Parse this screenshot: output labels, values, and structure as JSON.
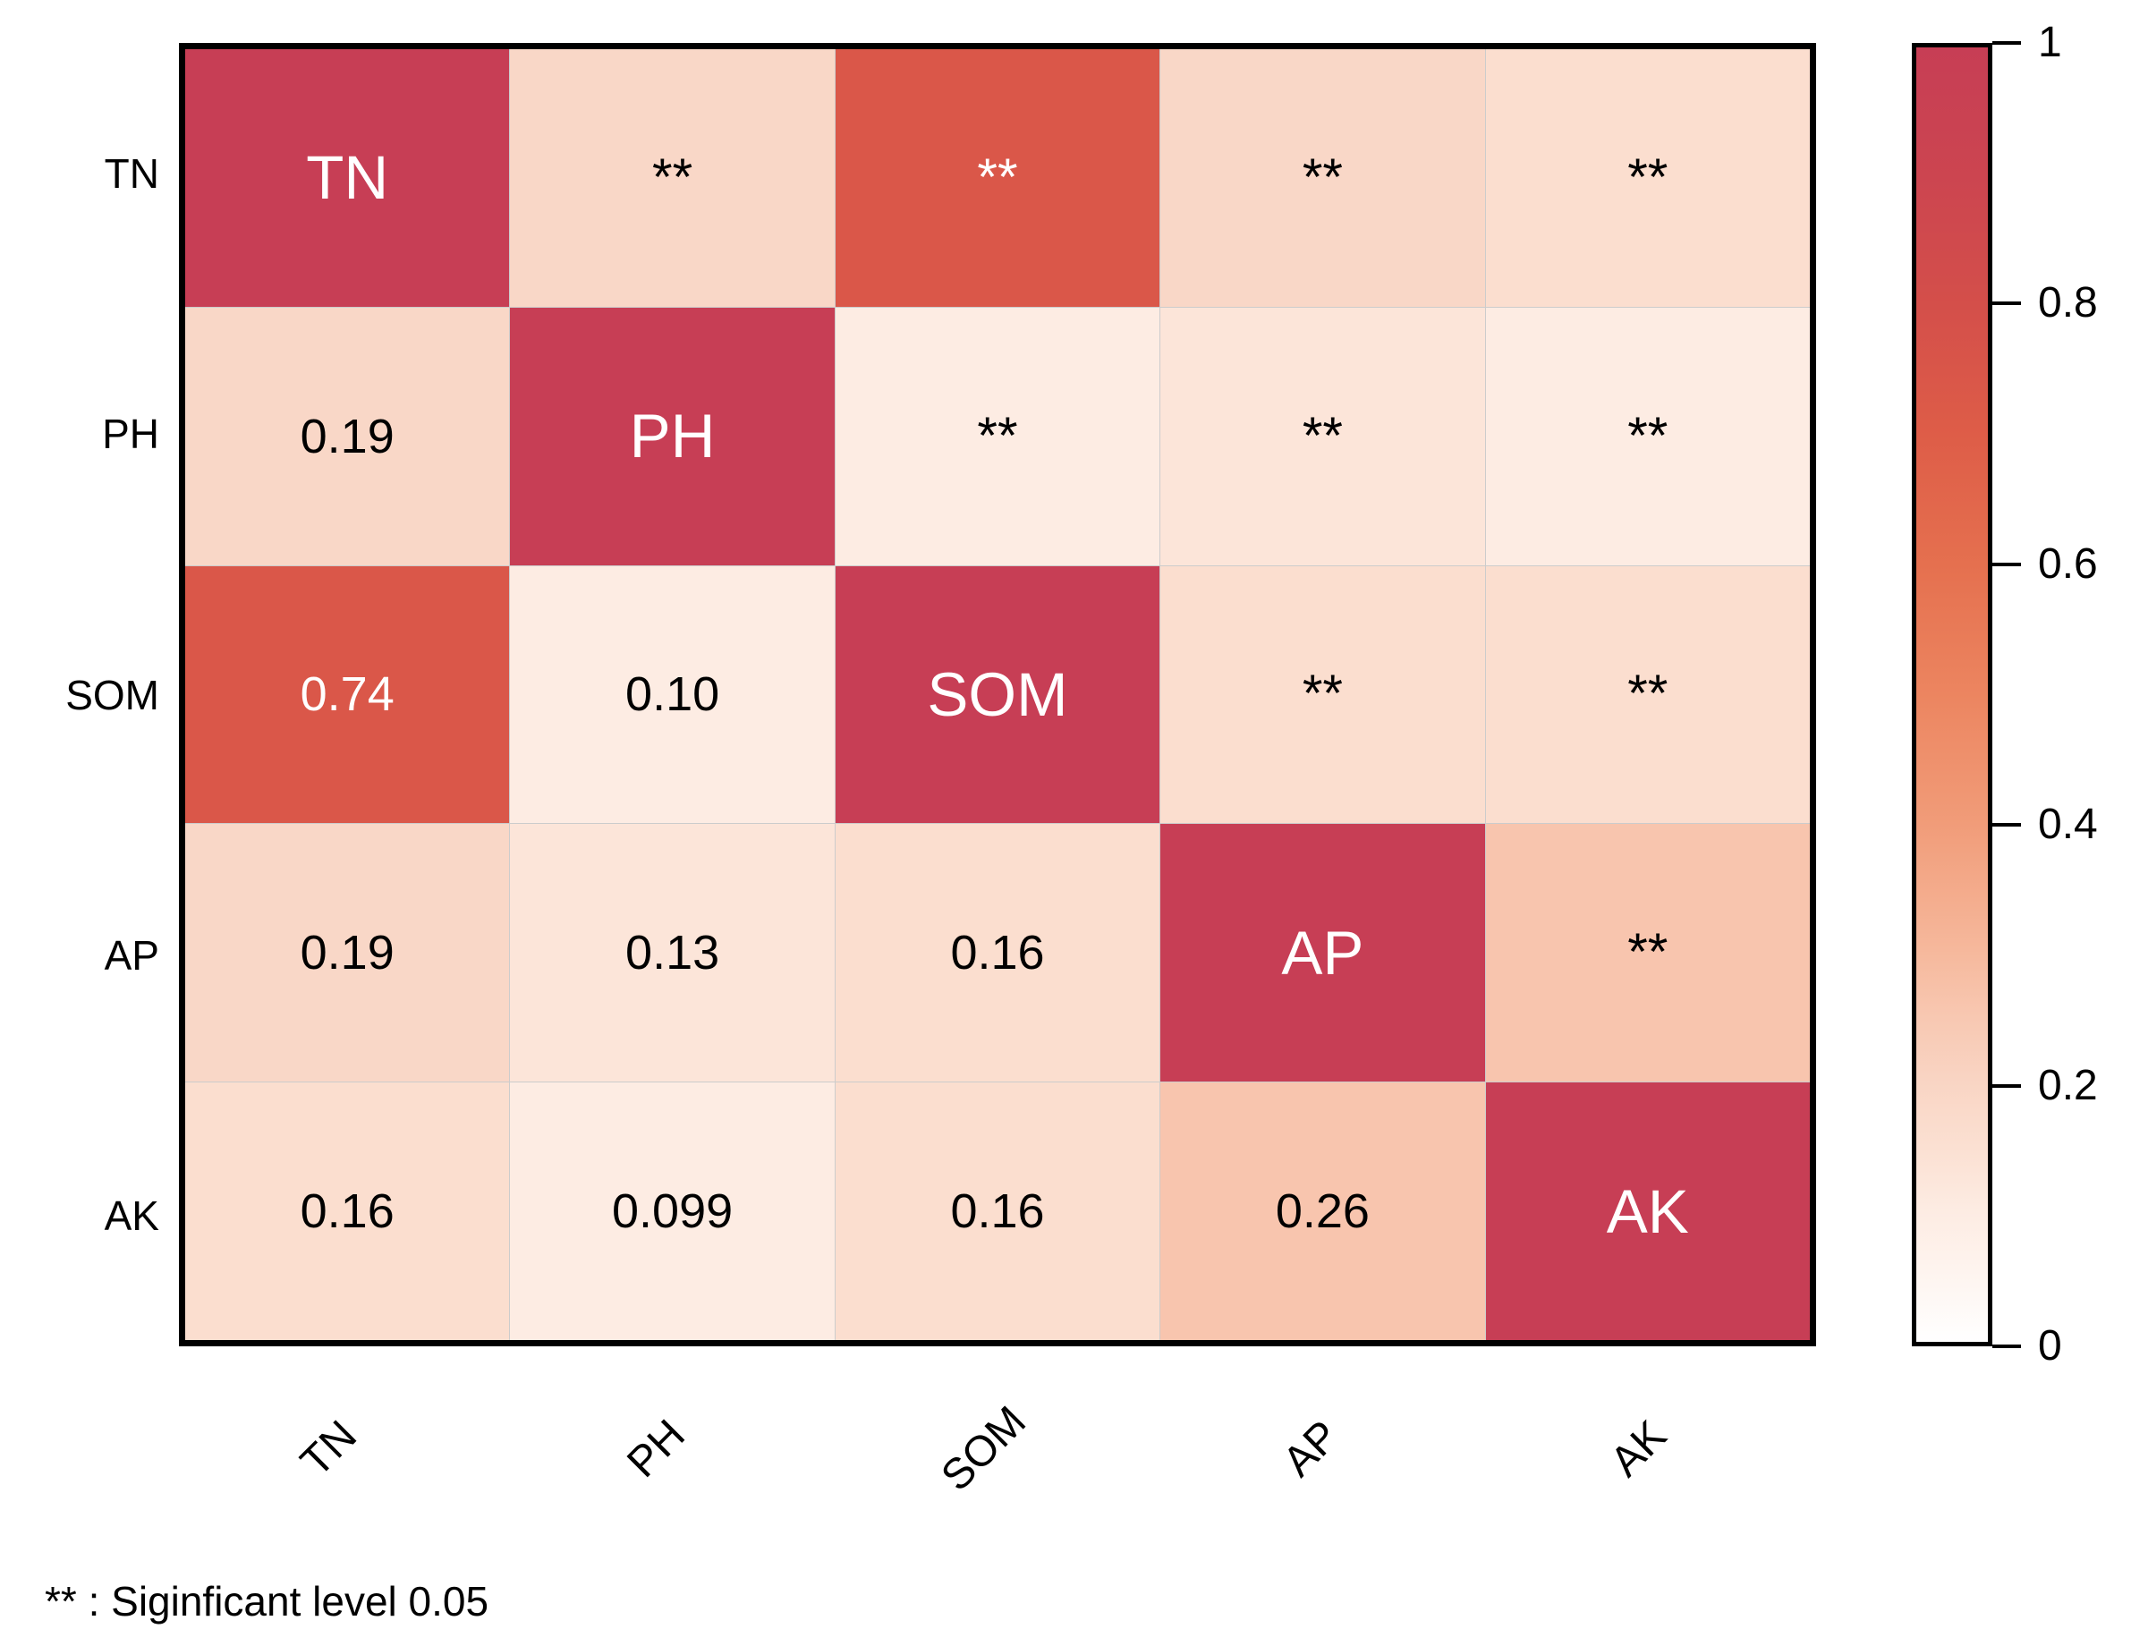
{
  "chart_data": {
    "type": "heatmap",
    "title": "",
    "variables": [
      "TN",
      "PH",
      "SOM",
      "AP",
      "AK"
    ],
    "row_labels": [
      "TN",
      "PH",
      "SOM",
      "AP",
      "AK"
    ],
    "col_labels": [
      "TN",
      "PH",
      "SOM",
      "AP",
      "AK"
    ],
    "values": [
      [
        1.0,
        0.19,
        0.74,
        0.19,
        0.16
      ],
      [
        0.19,
        1.0,
        0.1,
        0.13,
        0.099
      ],
      [
        0.74,
        0.1,
        1.0,
        0.16,
        0.16
      ],
      [
        0.19,
        0.13,
        0.16,
        1.0,
        0.26
      ],
      [
        0.16,
        0.099,
        0.16,
        0.26,
        1.0
      ]
    ],
    "cell_display": [
      [
        "TN",
        "**",
        "**",
        "**",
        "**"
      ],
      [
        "0.19",
        "PH",
        "**",
        "**",
        "**"
      ],
      [
        "0.74",
        "0.10",
        "SOM",
        "**",
        "**"
      ],
      [
        "0.19",
        "0.13",
        "0.16",
        "AP",
        "**"
      ],
      [
        "0.16",
        "0.099",
        "0.16",
        "0.26",
        "AK"
      ]
    ],
    "significance_marker": "**",
    "colorbar": {
      "min": 0,
      "max": 1,
      "tick_labels": [
        "1",
        "0.8",
        "0.6",
        "0.4",
        "0.2",
        "0"
      ],
      "position": "right"
    },
    "footnote": "** : Siginficant level 0.05",
    "legend_position": "right",
    "grid": true
  },
  "colors": {
    "outer_border": "#000000",
    "gridline": "#cccccc",
    "text_dark": "#000000",
    "text_light": "#ffffff",
    "background": "#ffffff",
    "gradient_stops": [
      [
        0.0,
        "#ffffff"
      ],
      [
        0.05,
        "#fef5f0"
      ],
      [
        0.1,
        "#fdece3"
      ],
      [
        0.15,
        "#fbe0d2"
      ],
      [
        0.2,
        "#f9d5c4"
      ],
      [
        0.25,
        "#f8c8b2"
      ],
      [
        0.3,
        "#f6b99d"
      ],
      [
        0.4,
        "#f19c79"
      ],
      [
        0.5,
        "#ec8560"
      ],
      [
        0.6,
        "#e5704f"
      ],
      [
        0.7,
        "#de5d48"
      ],
      [
        0.8,
        "#d44f4a"
      ],
      [
        0.9,
        "#cc4550"
      ],
      [
        1.0,
        "#c73e55"
      ]
    ],
    "light_text_threshold": 0.5
  }
}
